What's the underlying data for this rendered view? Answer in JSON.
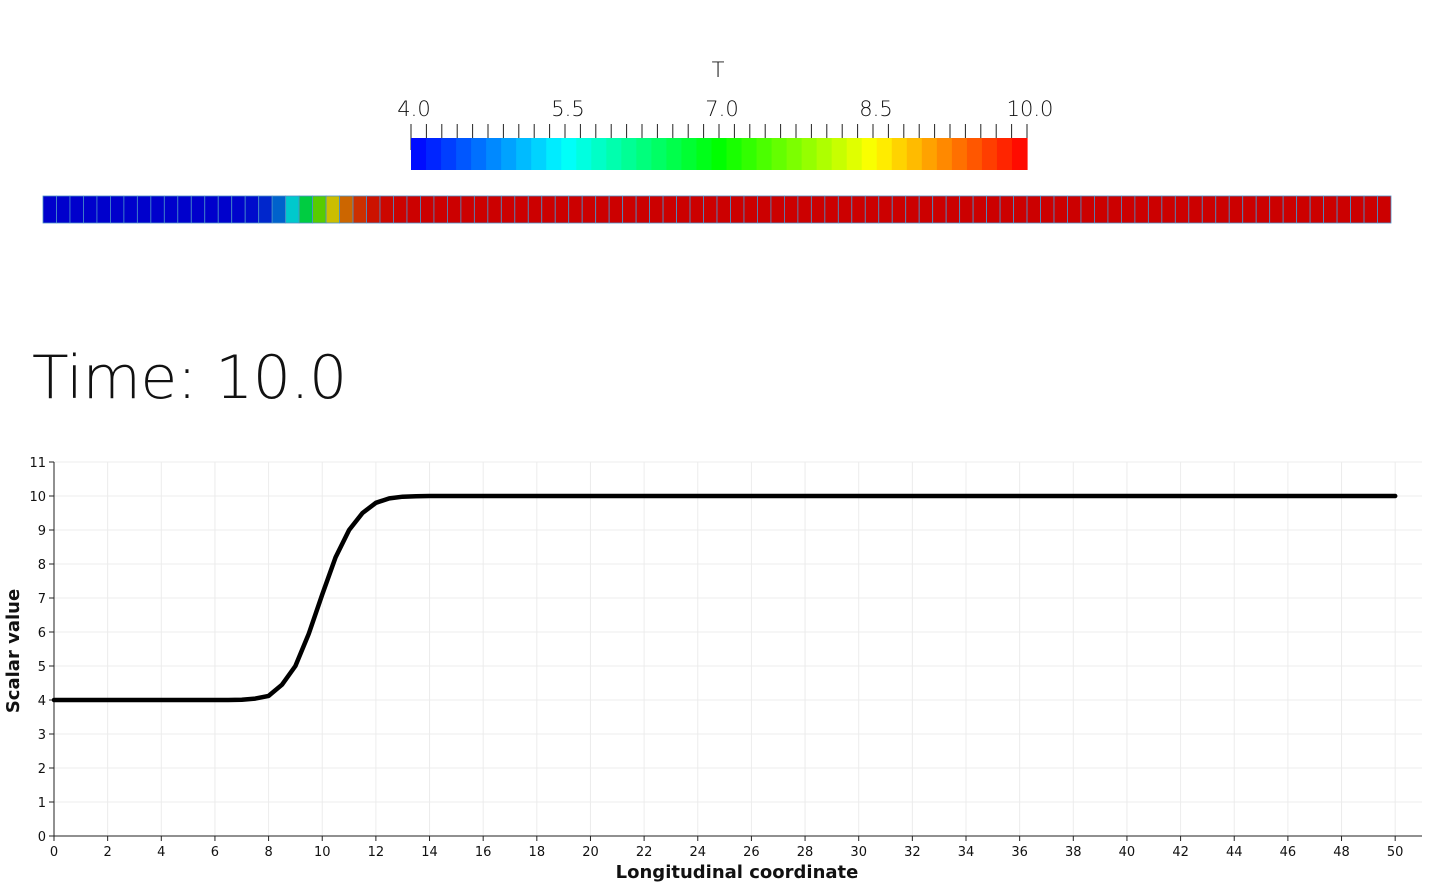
{
  "colorbar": {
    "title": "T",
    "min": 4.0,
    "max": 10.0,
    "tick_labels": [
      "4.0",
      "5.5",
      "7.0",
      "8.5",
      "10.0"
    ],
    "colormap": "rainbow",
    "colors": [
      "#0000ff",
      "#00ffff",
      "#00ff00",
      "#ffff00",
      "#ff0000"
    ]
  },
  "cells": {
    "count": 100,
    "x_range": [
      0,
      50
    ],
    "edge_color": "#4a90c8"
  },
  "time": {
    "label": "Time: 10.0"
  },
  "chart_data": {
    "type": "line",
    "title": "",
    "xlabel": "Longitudinal coordinate",
    "ylabel": "Scalar value",
    "xlim": [
      0,
      51
    ],
    "ylim": [
      0,
      11
    ],
    "xticks": [
      0,
      2,
      4,
      6,
      8,
      10,
      12,
      14,
      16,
      18,
      20,
      22,
      24,
      26,
      28,
      30,
      32,
      34,
      36,
      38,
      40,
      42,
      44,
      46,
      48,
      50
    ],
    "yticks": [
      0,
      1,
      2,
      3,
      4,
      5,
      6,
      7,
      8,
      9,
      10,
      11
    ],
    "grid": true,
    "line_color": "#000000",
    "series": [
      {
        "x": [
          0,
          1,
          2,
          3,
          4,
          5,
          6,
          6.5,
          7,
          7.5,
          8,
          8.5,
          9,
          9.5,
          10,
          10.5,
          11,
          11.5,
          12,
          12.5,
          13,
          13.5,
          14,
          15,
          16,
          18,
          20,
          25,
          30,
          35,
          40,
          45,
          50
        ],
        "y": [
          4.0,
          4.0,
          4.0,
          4.0,
          4.0,
          4.0,
          4.0,
          4.0,
          4.01,
          4.04,
          4.12,
          4.45,
          5.0,
          5.95,
          7.1,
          8.2,
          9.0,
          9.5,
          9.8,
          9.93,
          9.98,
          9.99,
          10.0,
          10.0,
          10.0,
          10.0,
          10.0,
          10.0,
          10.0,
          10.0,
          10.0,
          10.0,
          10.0
        ]
      }
    ]
  }
}
